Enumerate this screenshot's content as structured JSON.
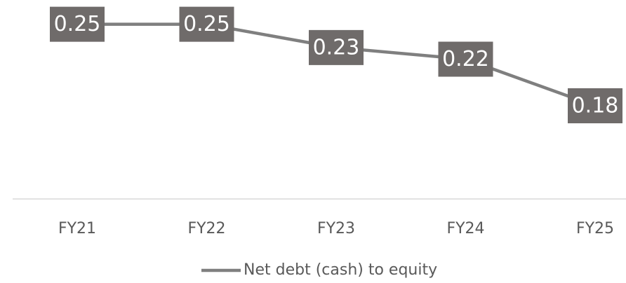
{
  "chart_data": {
    "type": "line",
    "categories": [
      "FY21",
      "FY22",
      "FY23",
      "FY24",
      "FY25"
    ],
    "series": [
      {
        "name": "Net debt (cash) to equity",
        "color": "#7f7f7f",
        "values": [
          0.25,
          0.25,
          0.23,
          0.22,
          0.18
        ]
      }
    ],
    "ylim": [
      0.1,
      0.26
    ],
    "label_color": "#6f6b6a",
    "legend": "bottom"
  }
}
